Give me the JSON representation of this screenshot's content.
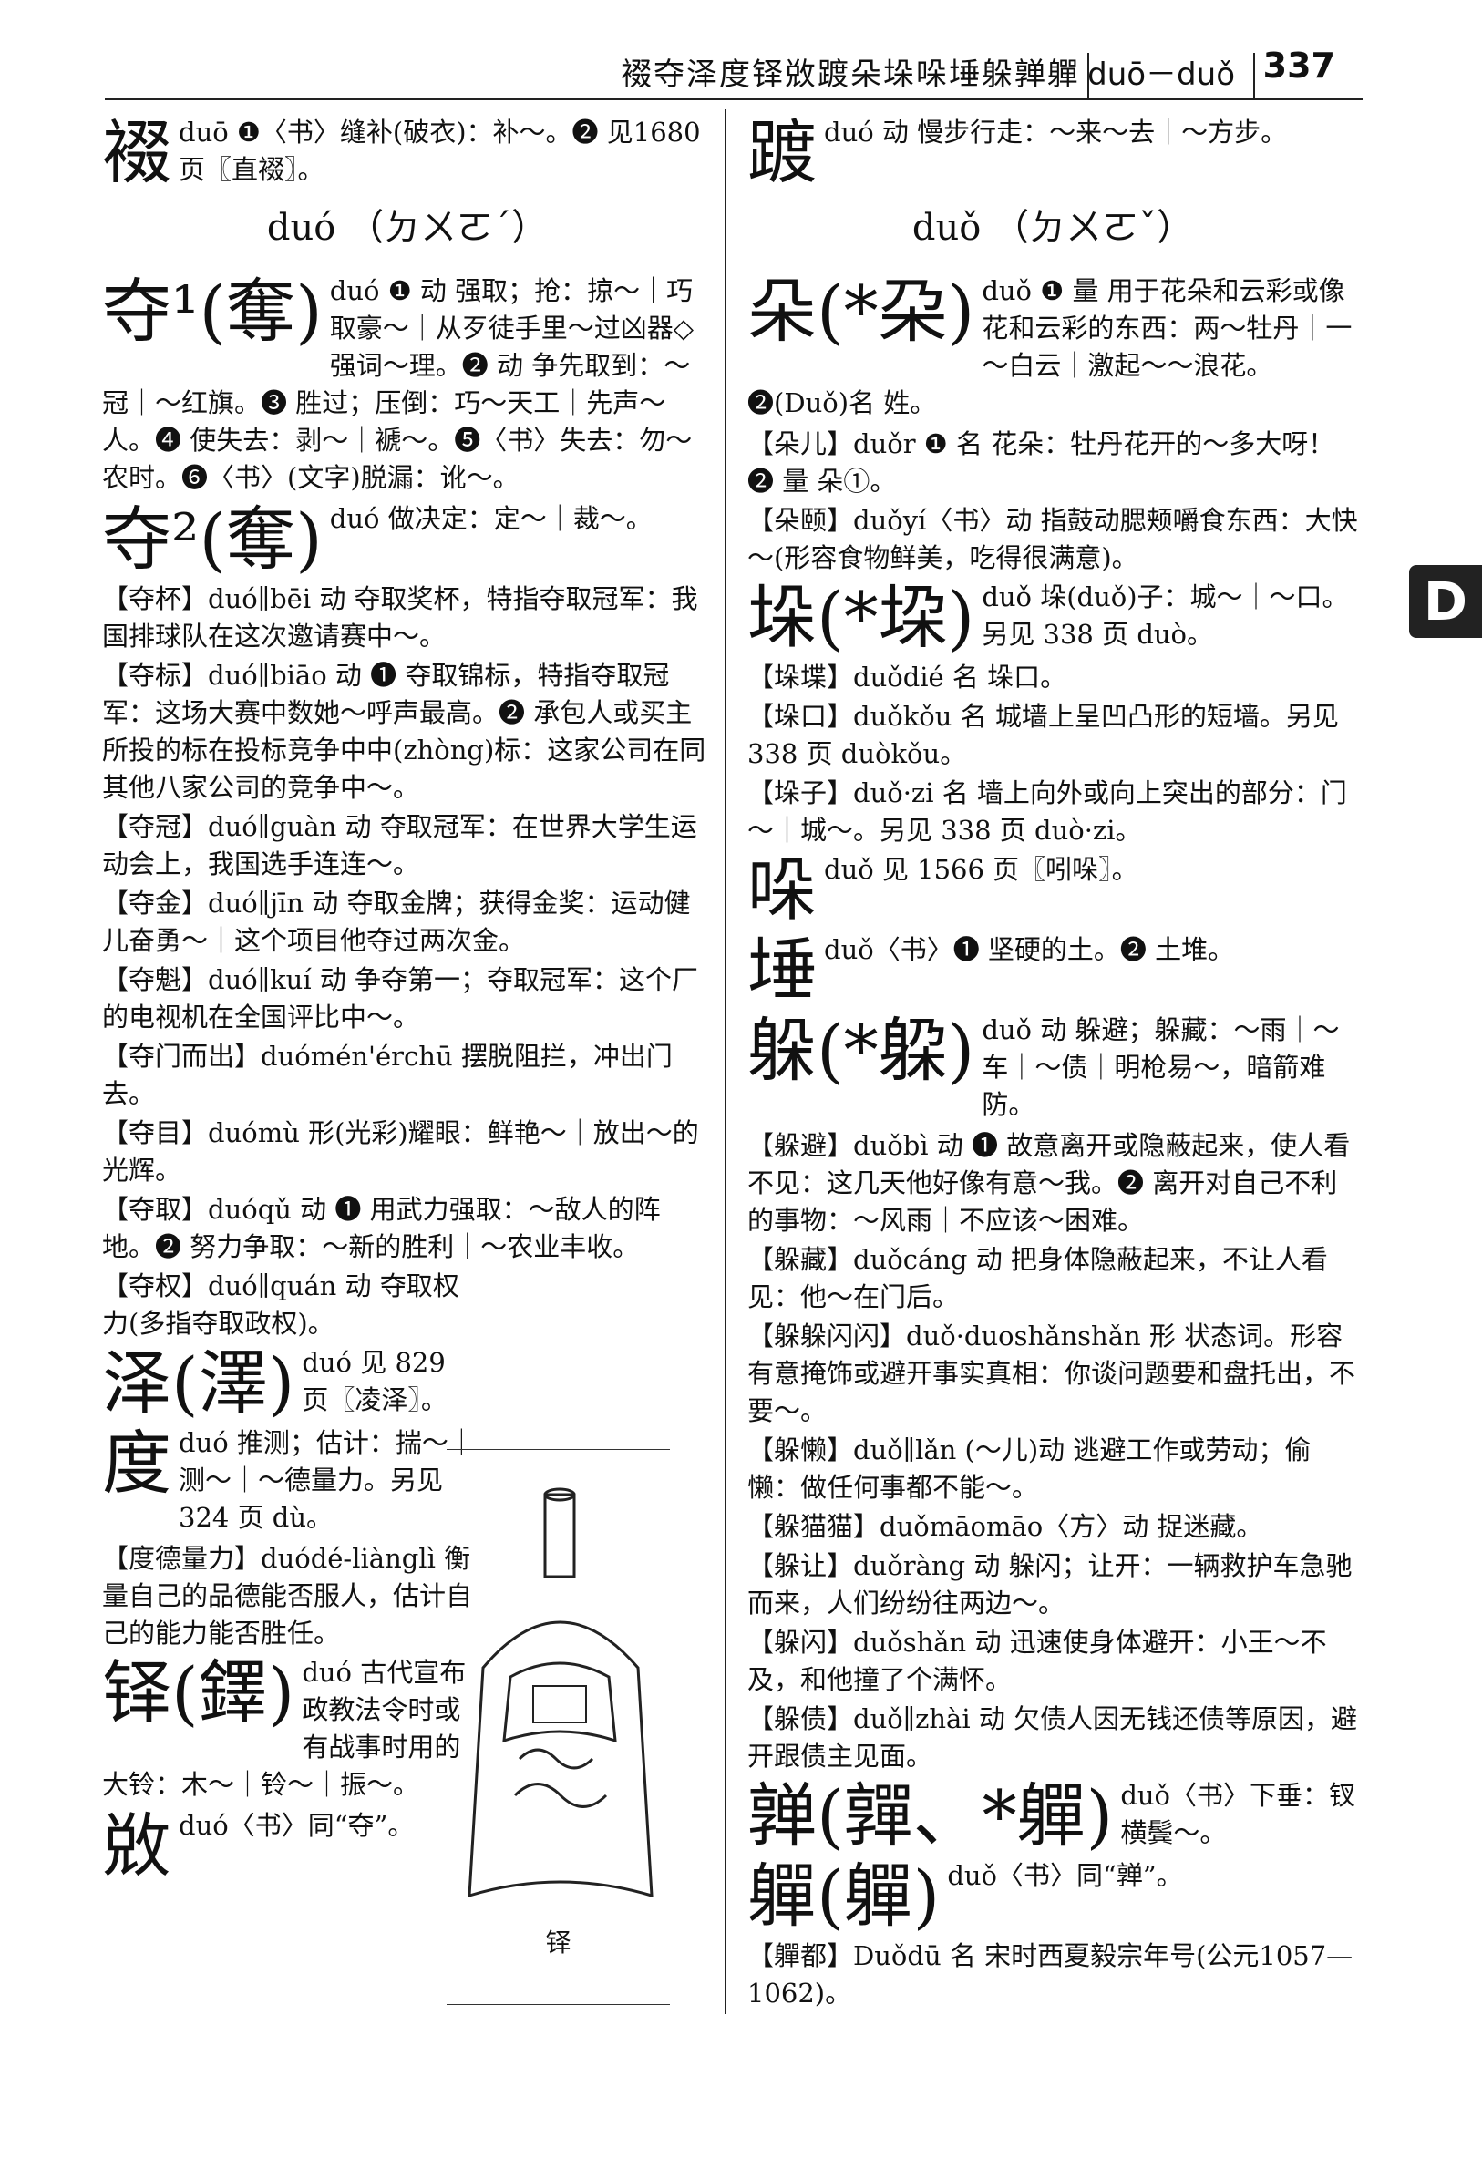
{
  "header": {
    "running_chars": "裰夺泽度铎敚踱朵垛哚埵躲亸軃",
    "running_pinyin": "duō－duǒ",
    "page_number": "337"
  },
  "tab_letter": "D",
  "left_column": [
    {
      "head": "裰",
      "text": "duō ❶〈书〉缝补(破衣)：补～。❷ 见1680 页〖直裰〗。"
    },
    {
      "section": "duó （ㄉㄨㄛˊ）"
    },
    {
      "head": "夺¹(奪)",
      "text": "duó ❶ 动 强取；抢：掠～｜巧取豪～｜从歹徒手里～过凶器◇强词～理。❷ 动 争先取到：～冠｜～红旗。❸ 胜过；压倒：巧～天工｜先声～人。❹ 使失去：剥～｜褫～。❺〈书〉失去：勿～农时。❻〈书〉(文字)脱漏：讹～。"
    },
    {
      "head": "夺²(奪)",
      "text": "duó 做决定：定～｜裁～。"
    },
    {
      "compound": "【夺杯】duó∥bēi 动 夺取奖杯，特指夺取冠军：我国排球队在这次邀请赛中～。"
    },
    {
      "compound": "【夺标】duó∥biāo 动 ❶ 夺取锦标，特指夺取冠军：这场大赛中数她～呼声最高。❷ 承包人或买主所投的标在投标竞争中中(zhòng)标：这家公司在同其他八家公司的竞争中～。"
    },
    {
      "compound": "【夺冠】duó∥guàn 动 夺取冠军：在世界大学生运动会上，我国选手连连～。"
    },
    {
      "compound": "【夺金】duó∥jīn 动 夺取金牌；获得金奖：运动健儿奋勇～｜这个项目他夺过两次金。"
    },
    {
      "compound": "【夺魁】duó∥kuí 动 争夺第一；夺取冠军：这个厂的电视机在全国评比中～。"
    },
    {
      "compound": "【夺门而出】duómén'érchū 摆脱阻拦，冲出门去。"
    },
    {
      "compound": "【夺目】duómù 形(光彩)耀眼：鲜艳～｜放出～的光辉。"
    },
    {
      "compound": "【夺取】duóqǔ 动 ❶ 用武力强取：～敌人的阵地。❷ 努力争取：～新的胜利｜～农业丰收。"
    },
    {
      "compound": "【夺权】duó∥quán 动 夺取权力(多指夺取政权)。"
    },
    {
      "head": "泽(澤)",
      "text": "duó 见 829 页〖凌泽〗。"
    },
    {
      "head": "度",
      "text": "duó 推测；估计：揣～｜测～｜～德量力。另见 324 页 dù。"
    },
    {
      "compound": "【度德量力】duódé-liànglì 衡量自己的品德能否服人，估计自己的能力能否胜任。"
    },
    {
      "head": "铎(鐸)",
      "text": "duó 古代宣布政教法令时或有战事时用的大铃：木～｜铃～｜振～。"
    },
    {
      "head": "敚",
      "text": "duó〈书〉同“夺”。"
    }
  ],
  "right_column": [
    {
      "head": "踱",
      "text": "duó 动 慢步行走：～来～去｜～方步。"
    },
    {
      "section": "duǒ （ㄉㄨㄛˇ）"
    },
    {
      "head": "朵(*朶)",
      "text": "duǒ ❶ 量 用于花朵和云彩或像花和云彩的东西：两～牡丹｜一～白云｜激起～～浪花。❷(Duǒ)名 姓。"
    },
    {
      "compound": "【朵儿】duǒr ❶ 名 花朵：牡丹花开的～多大呀！❷ 量 朵①。"
    },
    {
      "compound": "【朵颐】duǒyí〈书〉动 指鼓动腮颊嚼食东西：大快～(形容食物鲜美，吃得很满意)。"
    },
    {
      "head": "垛(*垜)",
      "text": "duǒ 垛(duǒ)子：城～｜～口。另见 338 页 duò。"
    },
    {
      "compound": "【垛堞】duǒdié 名 垛口。"
    },
    {
      "compound": "【垛口】duǒkǒu 名 城墙上呈凹凸形的短墙。另见 338 页 duòkǒu。"
    },
    {
      "compound": "【垛子】duǒ·zi 名 墙上向外或向上突出的部分：门～｜城～。另见 338 页 duò·zi。"
    },
    {
      "head": "哚",
      "text": "duǒ 见 1566 页〖吲哚〗。"
    },
    {
      "head": "埵",
      "text": "duǒ〈书〉❶ 坚硬的土。❷ 土堆。"
    },
    {
      "head": "躲(*躱)",
      "text": "duǒ 动 躲避；躲藏：～雨｜～车｜～债｜明枪易～，暗箭难防。"
    },
    {
      "compound": "【躲避】duǒbì 动 ❶ 故意离开或隐蔽起来，使人看不见：这几天他好像有意～我。❷ 离开对自己不利的事物：～风雨｜不应该～困难。"
    },
    {
      "compound": "【躲藏】duǒcáng 动 把身体隐蔽起来，不让人看见：他～在门后。"
    },
    {
      "compound": "【躲躲闪闪】duǒ·duoshǎnshǎn 形 状态词。形容有意掩饰或避开事实真相：你谈问题要和盘托出，不要～。"
    },
    {
      "compound": "【躲懒】duǒ∥lǎn (～儿)动 逃避工作或劳动；偷懒：做任何事都不能～。"
    },
    {
      "compound": "【躲猫猫】duǒmāomāo〈方〉动 捉迷藏。"
    },
    {
      "compound": "【躲让】duǒràng 动 躲闪；让开：一辆救护车急驰而来，人们纷纷往两边～。"
    },
    {
      "compound": "【躲闪】duǒshǎn 动 迅速使身体避开：小王～不及，和他撞了个满怀。"
    },
    {
      "compound": "【躲债】duǒ∥zhài 动 欠债人因无钱还债等原因，避开跟债主见面。"
    },
    {
      "head": "亸(嚲、*軃)",
      "text": "duǒ〈书〉下垂：钗横鬓～。"
    },
    {
      "head": "軃(軃)",
      "text": "duǒ〈书〉同“亸”。"
    },
    {
      "compound": "【軃都】Duǒdū 名 宋时西夏毅宗年号(公元1057—1062)。"
    }
  ],
  "figure": {
    "caption": "铎",
    "icon": "bell-illustration"
  }
}
